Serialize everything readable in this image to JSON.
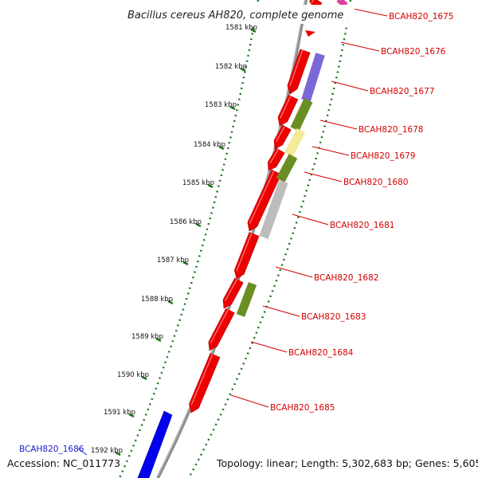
{
  "header": {
    "title": "Bacillus cereus AH820, complete genome"
  },
  "footer": {
    "accession": "Accession: NC_011773",
    "stats": "Topology: linear; Length: 5,302,683 bp; Genes: 5,605"
  },
  "ticks": [
    {
      "label": "1581 kbp"
    },
    {
      "label": "1582 kbp"
    },
    {
      "label": "1583 kbp"
    },
    {
      "label": "1584 kbp"
    },
    {
      "label": "1585 kbp"
    },
    {
      "label": "1586 kbp"
    },
    {
      "label": "1587 kbp"
    },
    {
      "label": "1588 kbp"
    },
    {
      "label": "1589 kbp"
    },
    {
      "label": "1590 kbp"
    },
    {
      "label": "1591 kbp"
    },
    {
      "label": "1592 kbp"
    }
  ],
  "genes": [
    {
      "label": "BCAH820_1675",
      "color": "#d40000"
    },
    {
      "label": "BCAH820_1676",
      "color": "#d40000"
    },
    {
      "label": "BCAH820_1677",
      "color": "#d40000"
    },
    {
      "label": "BCAH820_1678",
      "color": "#d40000"
    },
    {
      "label": "BCAH820_1679",
      "color": "#d40000"
    },
    {
      "label": "BCAH820_1680",
      "color": "#d40000"
    },
    {
      "label": "BCAH820_1681",
      "color": "#d40000"
    },
    {
      "label": "BCAH820_1682",
      "color": "#d40000"
    },
    {
      "label": "BCAH820_1683",
      "color": "#d40000"
    },
    {
      "label": "BCAH820_1684",
      "color": "#d40000"
    },
    {
      "label": "BCAH820_1685",
      "color": "#d40000"
    },
    {
      "label": "BCAH820_1686",
      "color": "#1a1acc"
    }
  ],
  "colors": {
    "forward": "#ee0000",
    "reverse": "#0000ee",
    "cog_purple": "#7b68d6",
    "cog_olive": "#6b8e23",
    "cog_yellow": "#f3eb9a",
    "cog_gray": "#bdbdbd",
    "cog_pink": "#e040a0",
    "backbone": "#888888",
    "tick": "#1f7a1f"
  }
}
